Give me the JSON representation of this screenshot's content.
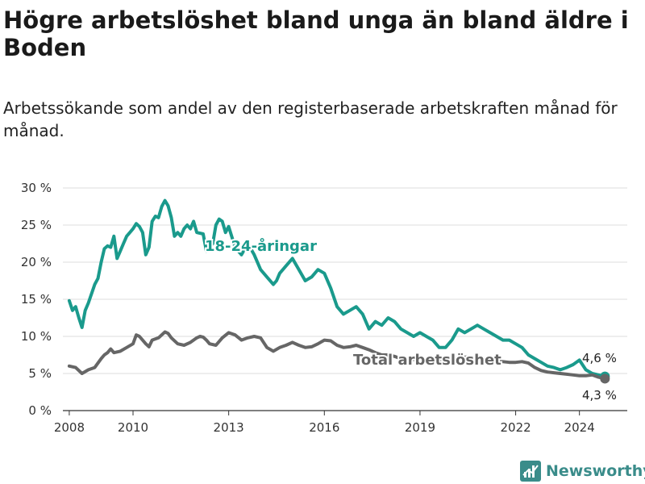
{
  "title": "Högre arbetslöshet bland unga än bland äldre i Boden",
  "subtitle": "Arbetssökande som andel av den registerbaserade arbetskraften månad för månad.",
  "brand": {
    "name": "Newsworthy",
    "icon": "bar-chart-logo-icon",
    "color": "#3a8c8a"
  },
  "chart_data": {
    "type": "line",
    "title": "Högre arbetslöshet bland unga än bland äldre i Boden",
    "subtitle": "Arbetssökande som andel av den registerbaserade arbetskraften månad för månad.",
    "xlabel": "",
    "ylabel": "",
    "x_ticks": [
      2008,
      2010,
      2013,
      2016,
      2019,
      2022,
      2024
    ],
    "y_ticks": [
      0,
      5,
      10,
      15,
      20,
      25,
      30
    ],
    "y_tick_labels": [
      "0 %",
      "5 %",
      "10 %",
      "15 %",
      "20 %",
      "25 %",
      "30 %"
    ],
    "xlim": [
      2007.8,
      2025.5
    ],
    "ylim": [
      0,
      30
    ],
    "grid": "horizontal",
    "legend": "inline labels",
    "series": [
      {
        "name": "18-24-åringar",
        "color": "#1a9a8c",
        "end_label": "4,6 %",
        "x": [
          2008.0,
          2008.1,
          2008.2,
          2008.3,
          2008.4,
          2008.5,
          2008.6,
          2008.8,
          2008.9,
          2009.0,
          2009.1,
          2009.2,
          2009.3,
          2009.4,
          2009.5,
          2009.6,
          2009.7,
          2009.8,
          2009.9,
          2010.0,
          2010.1,
          2010.2,
          2010.3,
          2010.4,
          2010.5,
          2010.6,
          2010.7,
          2010.8,
          2010.9,
          2011.0,
          2011.1,
          2011.2,
          2011.3,
          2011.4,
          2011.5,
          2011.6,
          2011.7,
          2011.8,
          2011.9,
          2012.0,
          2012.2,
          2012.3,
          2012.5,
          2012.6,
          2012.7,
          2012.8,
          2012.9,
          2013.0,
          2013.2,
          2013.4,
          2013.6,
          2013.8,
          2014.0,
          2014.2,
          2014.4,
          2014.5,
          2014.6,
          2014.8,
          2015.0,
          2015.2,
          2015.4,
          2015.6,
          2015.8,
          2016.0,
          2016.2,
          2016.4,
          2016.6,
          2016.8,
          2017.0,
          2017.2,
          2017.4,
          2017.6,
          2017.8,
          2018.0,
          2018.2,
          2018.4,
          2018.6,
          2018.8,
          2019.0,
          2019.2,
          2019.4,
          2019.6,
          2019.8,
          2020.0,
          2020.2,
          2020.4,
          2020.6,
          2020.8,
          2021.0,
          2021.2,
          2021.4,
          2021.6,
          2021.8,
          2022.0,
          2022.2,
          2022.4,
          2022.6,
          2022.8,
          2023.0,
          2023.2,
          2023.4,
          2023.6,
          2023.8,
          2024.0,
          2024.2,
          2024.4,
          2024.6,
          2024.8
        ],
        "y": [
          14.8,
          13.5,
          14.0,
          12.5,
          11.2,
          13.5,
          14.5,
          17.0,
          17.8,
          20.0,
          21.8,
          22.2,
          22.0,
          23.5,
          20.5,
          21.5,
          22.5,
          23.5,
          24.0,
          24.5,
          25.2,
          24.8,
          24.0,
          21.0,
          22.0,
          25.5,
          26.2,
          26.0,
          27.5,
          28.3,
          27.6,
          26.0,
          23.5,
          24.0,
          23.5,
          24.5,
          25.0,
          24.5,
          25.5,
          24.0,
          23.8,
          21.5,
          22.5,
          25.0,
          25.8,
          25.5,
          24.0,
          24.8,
          22.0,
          21.0,
          22.5,
          21.0,
          19.0,
          18.0,
          17.0,
          17.5,
          18.5,
          19.5,
          20.5,
          19.0,
          17.5,
          18.0,
          19.0,
          18.5,
          16.5,
          14.0,
          13.0,
          13.5,
          14.0,
          13.0,
          11.0,
          12.0,
          11.5,
          12.5,
          12.0,
          11.0,
          10.5,
          10.0,
          10.5,
          10.0,
          9.5,
          8.5,
          8.5,
          9.5,
          11.0,
          10.5,
          11.0,
          11.5,
          11.0,
          10.5,
          10.0,
          9.5,
          9.5,
          9.0,
          8.5,
          7.5,
          7.0,
          6.5,
          6.0,
          5.8,
          5.5,
          5.8,
          6.2,
          6.8,
          5.5,
          5.0,
          4.8,
          4.6
        ]
      },
      {
        "name": "Total arbetslöshet",
        "color": "#666666",
        "end_label": "4,3 %",
        "x": [
          2008.0,
          2008.2,
          2008.4,
          2008.6,
          2008.8,
          2009.0,
          2009.1,
          2009.2,
          2009.3,
          2009.4,
          2009.6,
          2009.8,
          2010.0,
          2010.1,
          2010.2,
          2010.4,
          2010.5,
          2010.6,
          2010.8,
          2011.0,
          2011.1,
          2011.2,
          2011.4,
          2011.6,
          2011.8,
          2012.0,
          2012.1,
          2012.2,
          2012.3,
          2012.4,
          2012.6,
          2012.8,
          2013.0,
          2013.2,
          2013.4,
          2013.6,
          2013.8,
          2014.0,
          2014.2,
          2014.4,
          2014.6,
          2014.8,
          2015.0,
          2015.2,
          2015.4,
          2015.6,
          2015.8,
          2016.0,
          2016.2,
          2016.4,
          2016.6,
          2016.8,
          2017.0,
          2017.2,
          2017.4,
          2017.6,
          2017.8,
          2018.0,
          2018.2,
          2018.4,
          2018.6,
          2018.8,
          2019.0,
          2019.2,
          2019.4,
          2019.6,
          2019.8,
          2020.0,
          2020.2,
          2020.4,
          2020.6,
          2020.8,
          2021.0,
          2021.2,
          2021.4,
          2021.6,
          2021.8,
          2022.0,
          2022.2,
          2022.4,
          2022.6,
          2022.8,
          2023.0,
          2023.2,
          2023.4,
          2023.6,
          2023.8,
          2024.0,
          2024.2,
          2024.4,
          2024.6,
          2024.8
        ],
        "y": [
          6.0,
          5.8,
          5.0,
          5.5,
          5.8,
          7.0,
          7.5,
          7.8,
          8.3,
          7.8,
          8.0,
          8.5,
          9.0,
          10.2,
          10.0,
          9.0,
          8.6,
          9.5,
          9.8,
          10.6,
          10.4,
          9.8,
          9.0,
          8.8,
          9.2,
          9.8,
          10.0,
          9.9,
          9.5,
          9.0,
          8.8,
          9.8,
          10.5,
          10.2,
          9.5,
          9.8,
          10.0,
          9.8,
          8.5,
          8.0,
          8.5,
          8.8,
          9.2,
          8.8,
          8.5,
          8.6,
          9.0,
          9.5,
          9.4,
          8.8,
          8.5,
          8.6,
          8.8,
          8.5,
          8.2,
          7.8,
          7.5,
          7.5,
          7.3,
          7.0,
          7.0,
          6.9,
          7.0,
          6.9,
          6.8,
          6.7,
          6.6,
          6.8,
          7.0,
          7.2,
          7.2,
          7.0,
          6.9,
          6.8,
          6.7,
          6.6,
          6.5,
          6.5,
          6.6,
          6.4,
          5.8,
          5.4,
          5.2,
          5.1,
          5.0,
          4.9,
          4.8,
          4.7,
          4.7,
          4.8,
          4.5,
          4.3
        ]
      }
    ]
  }
}
